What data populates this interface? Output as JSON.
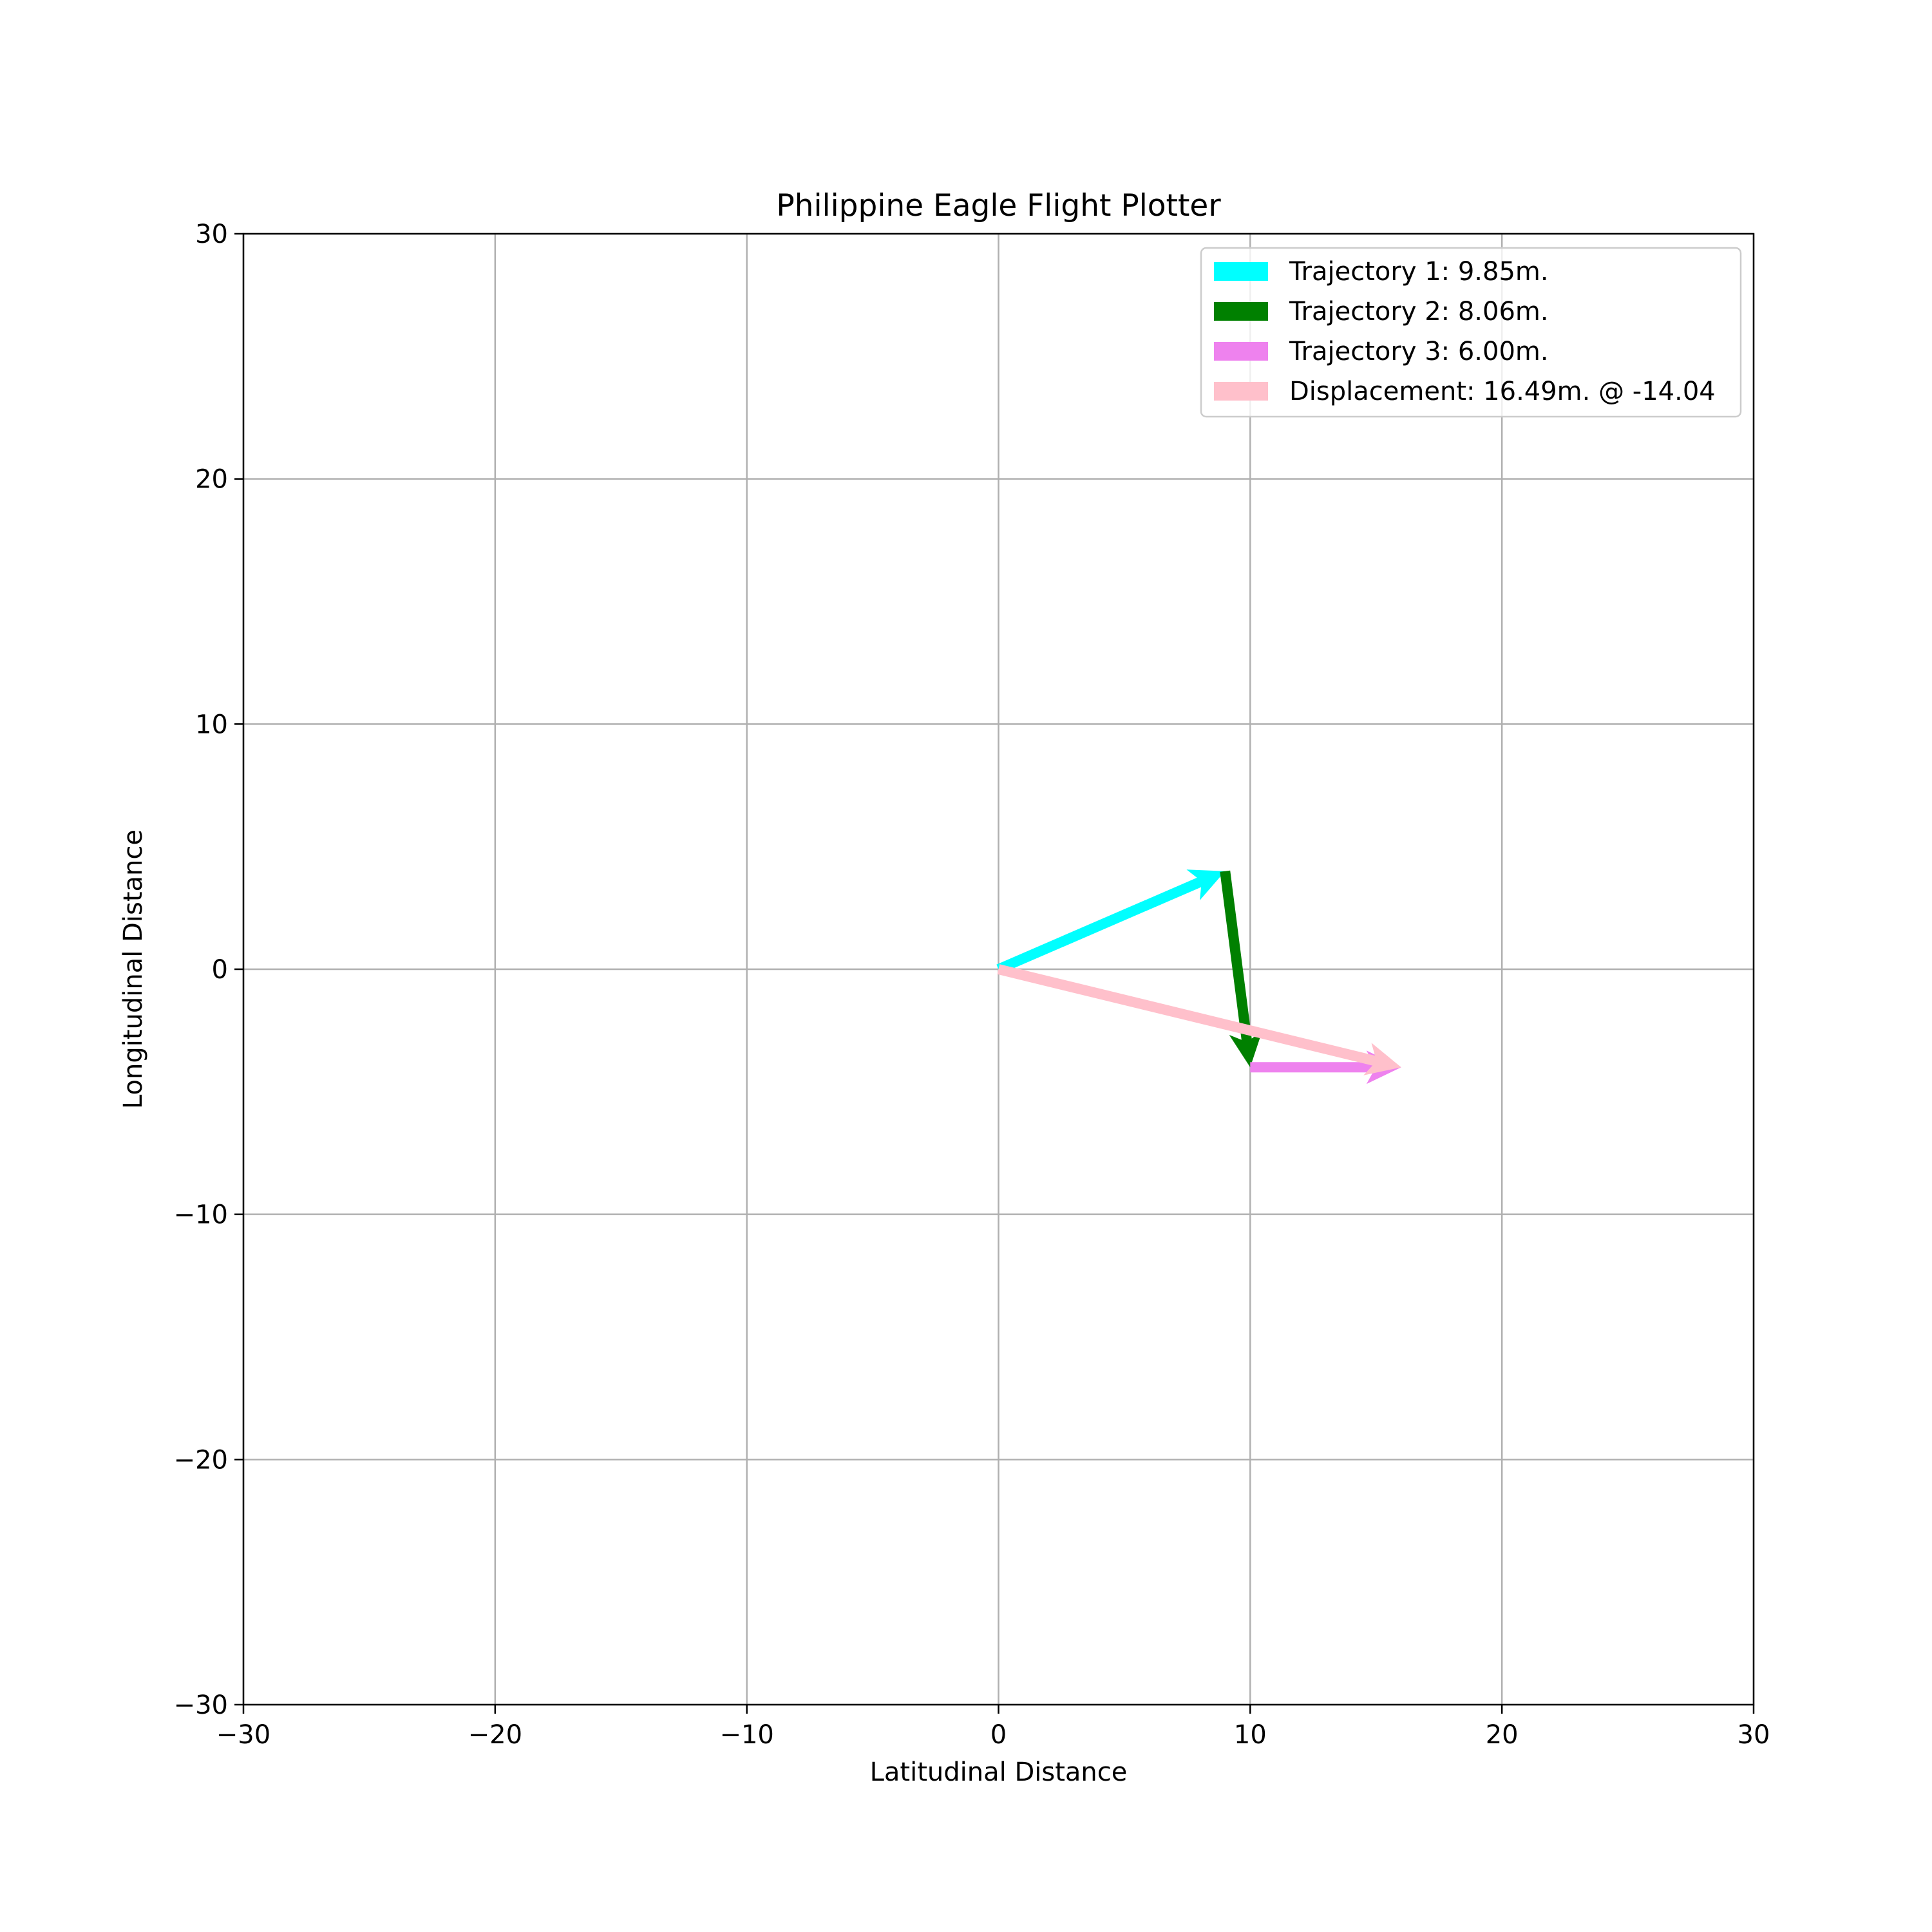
{
  "chart_data": {
    "type": "vector",
    "title": "Philippine Eagle Flight Plotter",
    "xlabel": "Latitudinal Distance",
    "ylabel": "Longitudinal Distance",
    "xlim": [
      -30,
      30
    ],
    "ylim": [
      -30,
      30
    ],
    "xticks": [
      -30,
      -20,
      -10,
      0,
      10,
      20,
      30
    ],
    "yticks": [
      -30,
      -20,
      -10,
      0,
      10,
      20,
      30
    ],
    "xtick_labels": [
      "−30",
      "−20",
      "−10",
      "0",
      "10",
      "20",
      "30"
    ],
    "ytick_labels": [
      "−30",
      "−20",
      "−10",
      "0",
      "10",
      "20",
      "30"
    ],
    "grid": true,
    "legend_position": "top-right",
    "series": [
      {
        "name": "Trajectory 1: 9.85m.",
        "color": "#00ffff",
        "start": [
          0,
          0
        ],
        "end": [
          9,
          4
        ]
      },
      {
        "name": "Trajectory 2: 8.06m.",
        "color": "#008000",
        "start": [
          9,
          4
        ],
        "end": [
          10,
          -4
        ]
      },
      {
        "name": "Trajectory 3: 6.00m.",
        "color": "#ee82ee",
        "start": [
          10,
          -4
        ],
        "end": [
          16,
          -4
        ]
      },
      {
        "name": "Displacement: 16.49m. @ -14.04",
        "color": "#ffc0cb",
        "start": [
          0,
          0
        ],
        "end": [
          16,
          -4
        ]
      }
    ]
  }
}
